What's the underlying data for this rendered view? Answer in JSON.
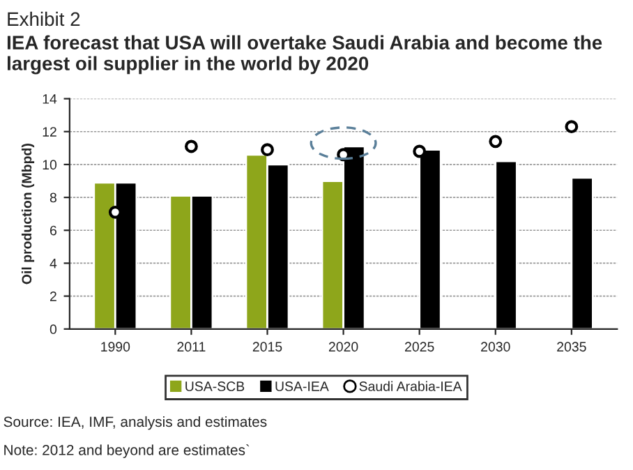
{
  "chart_data": {
    "type": "bar",
    "title": "Exhibit 2",
    "subtitle": "IEA forecast that USA will overtake Saudi Arabia and become the largest oil supplier in the world by 2020",
    "ylabel": "Oil production (Mbpd)",
    "categories": [
      "1990",
      "2011",
      "2015",
      "2020",
      "2025",
      "2030",
      "2035"
    ],
    "series": [
      {
        "name": "USA-SCB",
        "color": "#8ea61b",
        "values": [
          8.9,
          8.1,
          10.6,
          9.0,
          null,
          null,
          null
        ]
      },
      {
        "name": "USA-IEA",
        "color": "#000000",
        "values": [
          8.9,
          8.1,
          10.0,
          11.1,
          10.9,
          10.2,
          9.2
        ]
      },
      {
        "name": "Saudi Arabia-IEA",
        "type": "scatter",
        "marker": "circle",
        "color": "#ffffff",
        "values": [
          7.1,
          11.1,
          10.9,
          10.6,
          10.8,
          11.4,
          12.3
        ]
      }
    ],
    "ylim": [
      0,
      14
    ],
    "yticks": [
      0,
      2,
      4,
      6,
      8,
      10,
      12,
      14
    ],
    "grid": "y",
    "legend": "bottom",
    "annotations": [
      "Source: IEA, IMF, analysis and estimates",
      "Note: 2012 and beyond are estimates`"
    ]
  }
}
